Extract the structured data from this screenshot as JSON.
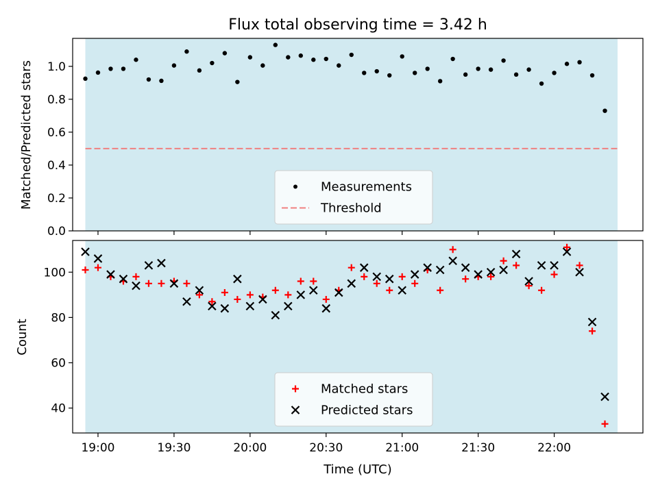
{
  "chart_data": [
    {
      "type": "scatter",
      "title": "Flux total observing time = 3.42 h",
      "xlabel": "",
      "ylabel": "Matched/Predicted stars",
      "xlim": [
        "18:50",
        "22:35"
      ],
      "ylim": [
        0,
        1.17
      ],
      "x_ticks": [
        "19:00",
        "19:30",
        "20:00",
        "20:30",
        "21:00",
        "21:30",
        "22:00"
      ],
      "y_ticks": [
        "0.0",
        "0.2",
        "0.4",
        "0.6",
        "0.8",
        "1.0"
      ],
      "shaded_span": [
        "18:55",
        "22:25"
      ],
      "shade_color": "#add8e6",
      "legend_position": "lower center",
      "threshold": {
        "name": "Threshold",
        "value": 0.5,
        "color": "#f08080",
        "style": "dashed"
      },
      "series": [
        {
          "name": "Measurements",
          "color": "#000000",
          "marker": "dot",
          "x": [
            "18:55",
            "19:00",
            "19:05",
            "19:10",
            "19:15",
            "19:20",
            "19:25",
            "19:30",
            "19:35",
            "19:40",
            "19:45",
            "19:50",
            "19:55",
            "20:00",
            "20:05",
            "20:10",
            "20:15",
            "20:20",
            "20:25",
            "20:30",
            "20:35",
            "20:40",
            "20:45",
            "20:50",
            "20:55",
            "21:00",
            "21:05",
            "21:10",
            "21:15",
            "21:20",
            "21:25",
            "21:30",
            "21:35",
            "21:40",
            "21:45",
            "21:50",
            "21:55",
            "22:00",
            "22:05",
            "22:10",
            "22:15",
            "22:20"
          ],
          "y": [
            0.925,
            0.962,
            0.985,
            0.985,
            1.04,
            0.92,
            0.912,
            1.005,
            1.09,
            0.975,
            1.02,
            1.08,
            0.905,
            1.055,
            1.005,
            1.13,
            1.055,
            1.065,
            1.04,
            1.045,
            1.005,
            1.07,
            0.96,
            0.97,
            0.945,
            1.06,
            0.96,
            0.985,
            0.91,
            1.045,
            0.95,
            0.985,
            0.98,
            1.035,
            0.95,
            0.98,
            0.895,
            0.96,
            1.015,
            1.025,
            0.945,
            0.73
          ]
        }
      ]
    },
    {
      "type": "scatter",
      "title": "",
      "xlabel": "Time (UTC)",
      "ylabel": "Count",
      "xlim": [
        "18:50",
        "22:35"
      ],
      "ylim": [
        29,
        114
      ],
      "x_ticks": [
        "19:00",
        "19:30",
        "20:00",
        "20:30",
        "21:00",
        "21:30",
        "22:00"
      ],
      "y_ticks": [
        "40",
        "60",
        "80",
        "100"
      ],
      "shaded_span": [
        "18:55",
        "22:25"
      ],
      "shade_color": "#add8e6",
      "legend_position": "lower center",
      "series": [
        {
          "name": "Matched stars",
          "color": "#ff0000",
          "marker": "plus",
          "x": [
            "18:55",
            "19:00",
            "19:05",
            "19:10",
            "19:15",
            "19:20",
            "19:25",
            "19:30",
            "19:35",
            "19:40",
            "19:45",
            "19:50",
            "19:55",
            "20:00",
            "20:05",
            "20:10",
            "20:15",
            "20:20",
            "20:25",
            "20:30",
            "20:35",
            "20:40",
            "20:45",
            "20:50",
            "20:55",
            "21:00",
            "21:05",
            "21:10",
            "21:15",
            "21:20",
            "21:25",
            "21:30",
            "21:35",
            "21:40",
            "21:45",
            "21:50",
            "21:55",
            "22:00",
            "22:05",
            "22:10",
            "22:15",
            "22:20"
          ],
          "y": [
            101,
            102,
            98,
            96,
            98,
            95,
            95,
            96,
            95,
            90,
            87,
            91,
            88,
            90,
            89,
            92,
            90,
            96,
            96,
            88,
            92,
            102,
            98,
            95,
            92,
            98,
            95,
            101,
            92,
            110,
            97,
            98,
            98,
            105,
            103,
            94,
            92,
            99,
            111,
            103,
            74,
            33
          ]
        },
        {
          "name": "Predicted stars",
          "color": "#000000",
          "marker": "x",
          "x": [
            "18:55",
            "19:00",
            "19:05",
            "19:10",
            "19:15",
            "19:20",
            "19:25",
            "19:30",
            "19:35",
            "19:40",
            "19:45",
            "19:50",
            "19:55",
            "20:00",
            "20:05",
            "20:10",
            "20:15",
            "20:20",
            "20:25",
            "20:30",
            "20:35",
            "20:40",
            "20:45",
            "20:50",
            "20:55",
            "21:00",
            "21:05",
            "21:10",
            "21:15",
            "21:20",
            "21:25",
            "21:30",
            "21:35",
            "21:40",
            "21:45",
            "21:50",
            "21:55",
            "22:00",
            "22:05",
            "22:10",
            "22:15",
            "22:20"
          ],
          "y": [
            109,
            106,
            99,
            97,
            94,
            103,
            104,
            95,
            87,
            92,
            85,
            84,
            97,
            85,
            88,
            81,
            85,
            90,
            92,
            84,
            91,
            95,
            102,
            98,
            97,
            92,
            99,
            102,
            101,
            105,
            102,
            99,
            100,
            101,
            108,
            96,
            103,
            103,
            109,
            100,
            78,
            45
          ]
        }
      ]
    }
  ]
}
